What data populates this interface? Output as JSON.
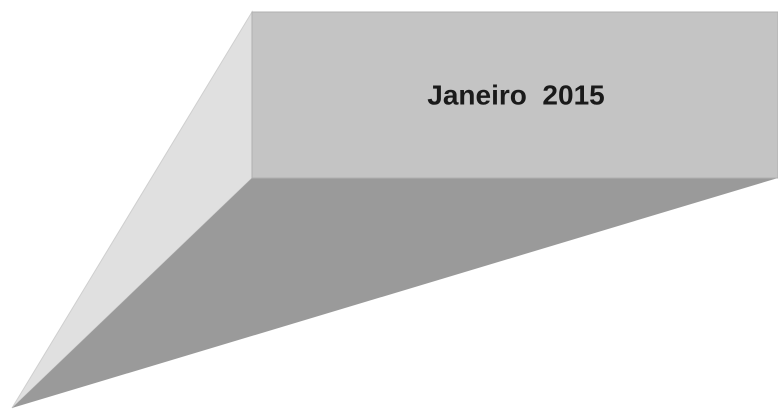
{
  "title": "Janeiro  2015"
}
